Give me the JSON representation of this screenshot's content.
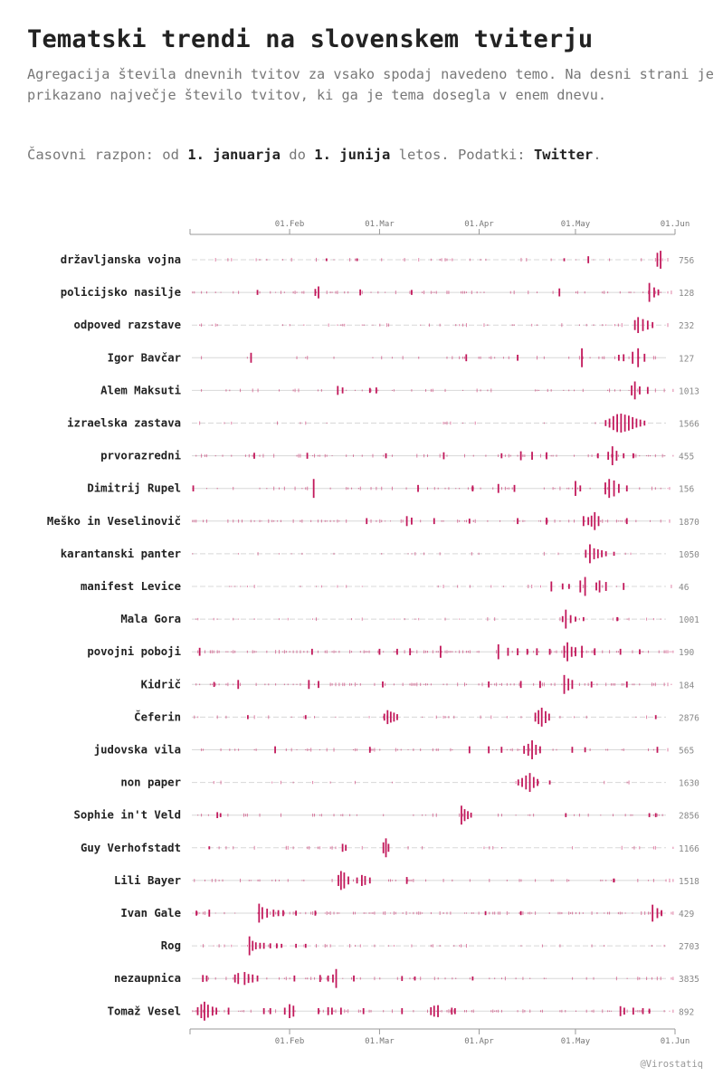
{
  "header": {
    "title": "Tematski trendi na slovenskem tviterju",
    "subtitle": "Agregacija števila dnevnih tvitov za vsako spodaj navedeno temo. Na desni strani je prikazano največje število tvitov, ki ga je tema dosegla v enem dnevu.",
    "range_prefix": "Časovni razpon: od ",
    "range_start": "1. januarja",
    "range_mid": " do ",
    "range_end": "1. junija",
    "range_suffix": " letos. Podatki: ",
    "range_source": "Twitter",
    "range_end_punct": "."
  },
  "credit": "@Virostatiq",
  "chart_data": {
    "type": "horizon-spike",
    "xlim": [
      "01.Jan",
      "01.Jun"
    ],
    "ticks": [
      {
        "label": "01.Feb",
        "day": 31
      },
      {
        "label": "01.Mar",
        "day": 59
      },
      {
        "label": "01.Apr",
        "day": 90
      },
      {
        "label": "01.May",
        "day": 120
      },
      {
        "label": "01.Jun",
        "day": 151
      }
    ],
    "colors": {
      "spike": "#c2185b",
      "baseline": "#d8d8d8",
      "axis": "#999999"
    },
    "series": [
      {
        "name": "državljanska vojna",
        "max": 756,
        "peaks": [
          [
            146.5,
            0.9
          ],
          [
            145.5,
            0.7
          ],
          [
            124,
            0.35
          ],
          [
            116.5,
            0.15
          ],
          [
            42.5,
            0.12
          ],
          [
            52,
            0.1
          ]
        ],
        "noise": 0.2
      },
      {
        "name": "policijsko nasilje",
        "max": 128,
        "peaks": [
          [
            143,
            0.95
          ],
          [
            144.5,
            0.5
          ],
          [
            40,
            0.6
          ],
          [
            39,
            0.35
          ],
          [
            115,
            0.4
          ],
          [
            21,
            0.25
          ],
          [
            53,
            0.3
          ],
          [
            69,
            0.25
          ],
          [
            145.8,
            0.3
          ]
        ],
        "noise": 0.45
      },
      {
        "name": "odpoved razstave",
        "max": 232,
        "peaks": [
          [
            139.5,
            0.8
          ],
          [
            141,
            0.6
          ],
          [
            142.5,
            0.45
          ],
          [
            138.5,
            0.5
          ],
          [
            144,
            0.3
          ]
        ],
        "noise": 0.25
      },
      {
        "name": "Igor Bavčar",
        "max": 127,
        "peaks": [
          [
            122,
            0.95
          ],
          [
            139.5,
            0.95
          ],
          [
            137.8,
            0.6
          ],
          [
            141.5,
            0.4
          ],
          [
            19,
            0.5
          ],
          [
            86,
            0.35
          ],
          [
            102,
            0.3
          ],
          [
            133.5,
            0.3
          ],
          [
            135,
            0.35
          ]
        ],
        "noise": 0.35
      },
      {
        "name": "Alem Maksuti",
        "max": 1013,
        "peaks": [
          [
            138.5,
            0.9
          ],
          [
            137.5,
            0.5
          ],
          [
            140,
            0.4
          ],
          [
            142.5,
            0.35
          ],
          [
            46,
            0.45
          ],
          [
            47.5,
            0.3
          ],
          [
            58,
            0.3
          ],
          [
            56,
            0.25
          ]
        ],
        "noise": 0.3
      },
      {
        "name": "izraelska zastava",
        "max": 1566,
        "peaks": [
          [
            133,
            0.9
          ],
          [
            134.2,
            0.95
          ],
          [
            135.4,
            0.85
          ],
          [
            136.6,
            0.75
          ],
          [
            131.8,
            0.7
          ],
          [
            137.8,
            0.6
          ],
          [
            130.6,
            0.45
          ],
          [
            139,
            0.45
          ],
          [
            140.2,
            0.35
          ],
          [
            129.4,
            0.3
          ],
          [
            141.5,
            0.25
          ]
        ],
        "noise": 0.1
      },
      {
        "name": "prvorazredni",
        "max": 455,
        "peaks": [
          [
            131.5,
            0.95
          ],
          [
            132.8,
            0.5
          ],
          [
            130.2,
            0.4
          ],
          [
            103,
            0.45
          ],
          [
            106.5,
            0.4
          ],
          [
            111,
            0.35
          ],
          [
            79,
            0.35
          ],
          [
            20,
            0.3
          ],
          [
            36.5,
            0.3
          ],
          [
            61,
            0.25
          ],
          [
            127,
            0.25
          ],
          [
            135,
            0.25
          ],
          [
            138,
            0.25
          ],
          [
            97,
            0.25
          ]
        ],
        "noise": 0.55
      },
      {
        "name": "Dimitrij Rupel",
        "max": 156,
        "peaks": [
          [
            130.5,
            0.95
          ],
          [
            132,
            0.8
          ],
          [
            129.3,
            0.6
          ],
          [
            133.5,
            0.45
          ],
          [
            120,
            0.75
          ],
          [
            121.5,
            0.3
          ],
          [
            38.5,
            0.95
          ],
          [
            1,
            0.3
          ],
          [
            96,
            0.45
          ],
          [
            101,
            0.35
          ],
          [
            71,
            0.35
          ],
          [
            88,
            0.3
          ],
          [
            136,
            0.3
          ]
        ],
        "noise": 0.4
      },
      {
        "name": "Meško in Veselinovič",
        "max": 1870,
        "peaks": [
          [
            126,
            0.9
          ],
          [
            125,
            0.55
          ],
          [
            127.2,
            0.5
          ],
          [
            122.5,
            0.5
          ],
          [
            124,
            0.4
          ],
          [
            67.5,
            0.5
          ],
          [
            69,
            0.35
          ],
          [
            55,
            0.3
          ],
          [
            76,
            0.3
          ],
          [
            87,
            0.25
          ],
          [
            102,
            0.3
          ],
          [
            111,
            0.35
          ],
          [
            136,
            0.3
          ]
        ],
        "noise": 0.5
      },
      {
        "name": "karantanski panter",
        "max": 1050,
        "peaks": [
          [
            124.5,
            0.95
          ],
          [
            125.8,
            0.55
          ],
          [
            127,
            0.45
          ],
          [
            123.2,
            0.4
          ],
          [
            128.2,
            0.35
          ],
          [
            129.5,
            0.25
          ],
          [
            132,
            0.2
          ]
        ],
        "noise": 0.1
      },
      {
        "name": "manifest Levice",
        "max": 46,
        "peaks": [
          [
            123,
            0.95
          ],
          [
            121.5,
            0.6
          ],
          [
            112.5,
            0.5
          ],
          [
            127.5,
            0.6
          ],
          [
            126.5,
            0.4
          ],
          [
            129.5,
            0.45
          ],
          [
            135,
            0.35
          ],
          [
            116,
            0.3
          ],
          [
            118,
            0.25
          ]
        ],
        "noise": 0.15
      },
      {
        "name": "Mala Gora",
        "max": 1001,
        "peaks": [
          [
            117,
            0.95
          ],
          [
            118.5,
            0.4
          ],
          [
            116,
            0.3
          ],
          [
            120,
            0.25
          ],
          [
            122.5,
            0.2
          ],
          [
            133,
            0.2
          ]
        ],
        "noise": 0.2
      },
      {
        "name": "povojni poboji",
        "max": 190,
        "peaks": [
          [
            117.5,
            0.95
          ],
          [
            116.5,
            0.6
          ],
          [
            118.8,
            0.5
          ],
          [
            120,
            0.45
          ],
          [
            122,
            0.6
          ],
          [
            96,
            0.75
          ],
          [
            78,
            0.6
          ],
          [
            3,
            0.4
          ],
          [
            38,
            0.3
          ],
          [
            59,
            0.3
          ],
          [
            64.5,
            0.3
          ],
          [
            68.5,
            0.35
          ],
          [
            99,
            0.4
          ],
          [
            102,
            0.35
          ],
          [
            105,
            0.3
          ],
          [
            108,
            0.35
          ],
          [
            112,
            0.3
          ],
          [
            126,
            0.35
          ],
          [
            134,
            0.3
          ],
          [
            140,
            0.25
          ]
        ],
        "noise": 0.65
      },
      {
        "name": "Kidrič",
        "max": 184,
        "peaks": [
          [
            116.5,
            0.95
          ],
          [
            117.8,
            0.6
          ],
          [
            119,
            0.45
          ],
          [
            15,
            0.45
          ],
          [
            37,
            0.45
          ],
          [
            40,
            0.35
          ],
          [
            60,
            0.3
          ],
          [
            93,
            0.3
          ],
          [
            103,
            0.35
          ],
          [
            109,
            0.35
          ],
          [
            125,
            0.3
          ],
          [
            136,
            0.3
          ],
          [
            7.5,
            0.25
          ]
        ],
        "noise": 0.6
      },
      {
        "name": "Čeferin",
        "max": 2876,
        "peaks": [
          [
            109.5,
            0.95
          ],
          [
            108.5,
            0.7
          ],
          [
            110.7,
            0.6
          ],
          [
            107.5,
            0.45
          ],
          [
            111.8,
            0.35
          ],
          [
            61.5,
            0.7
          ],
          [
            62.5,
            0.55
          ],
          [
            63.5,
            0.45
          ],
          [
            60.5,
            0.35
          ],
          [
            64.5,
            0.3
          ],
          [
            18,
            0.2
          ],
          [
            36,
            0.2
          ],
          [
            145,
            0.2
          ]
        ],
        "noise": 0.2
      },
      {
        "name": "judovska vila",
        "max": 565,
        "peaks": [
          [
            106.5,
            0.95
          ],
          [
            105.3,
            0.6
          ],
          [
            107.7,
            0.5
          ],
          [
            104,
            0.4
          ],
          [
            109,
            0.35
          ],
          [
            26.5,
            0.35
          ],
          [
            56,
            0.3
          ],
          [
            87,
            0.35
          ],
          [
            93,
            0.35
          ],
          [
            97,
            0.3
          ],
          [
            145.5,
            0.3
          ],
          [
            119,
            0.3
          ],
          [
            123,
            0.25
          ]
        ],
        "noise": 0.35
      },
      {
        "name": "non paper",
        "max": 1630,
        "peaks": [
          [
            105.8,
            0.95
          ],
          [
            104.6,
            0.7
          ],
          [
            107,
            0.55
          ],
          [
            103.4,
            0.45
          ],
          [
            108.2,
            0.35
          ],
          [
            102.2,
            0.3
          ],
          [
            112,
            0.2
          ]
        ],
        "noise": 0.1
      },
      {
        "name": "Sophie in't Veld",
        "max": 2856,
        "peaks": [
          [
            84.5,
            0.95
          ],
          [
            85.5,
            0.6
          ],
          [
            86.5,
            0.4
          ],
          [
            87.5,
            0.25
          ],
          [
            8.5,
            0.3
          ],
          [
            9.5,
            0.2
          ],
          [
            117,
            0.2
          ],
          [
            143,
            0.2
          ],
          [
            145,
            0.2
          ]
        ],
        "noise": 0.3
      },
      {
        "name": "Guy Verhofstadt",
        "max": 1166,
        "peaks": [
          [
            61,
            0.95
          ],
          [
            60.2,
            0.55
          ],
          [
            61.8,
            0.4
          ],
          [
            47.5,
            0.4
          ],
          [
            48.5,
            0.3
          ],
          [
            6,
            0.15
          ]
        ],
        "noise": 0.2
      },
      {
        "name": "Lili Bayer",
        "max": 1518,
        "peaks": [
          [
            47,
            0.95
          ],
          [
            48,
            0.8
          ],
          [
            46.2,
            0.55
          ],
          [
            49.3,
            0.4
          ],
          [
            53.5,
            0.55
          ],
          [
            54.5,
            0.45
          ],
          [
            52,
            0.3
          ],
          [
            56,
            0.3
          ],
          [
            67.5,
            0.35
          ],
          [
            132,
            0.2
          ]
        ],
        "noise": 0.4
      },
      {
        "name": "Ivan Gale",
        "max": 429,
        "peaks": [
          [
            21.5,
            0.95
          ],
          [
            22.5,
            0.6
          ],
          [
            24,
            0.45
          ],
          [
            26,
            0.35
          ],
          [
            27.5,
            0.3
          ],
          [
            29,
            0.3
          ],
          [
            33,
            0.25
          ],
          [
            39,
            0.25
          ],
          [
            6,
            0.35
          ],
          [
            2,
            0.25
          ],
          [
            92,
            0.2
          ],
          [
            103,
            0.2
          ],
          [
            144,
            0.85
          ],
          [
            145.5,
            0.5
          ],
          [
            146.8,
            0.3
          ]
        ],
        "noise": 0.7
      },
      {
        "name": "Rog",
        "max": 2703,
        "peaks": [
          [
            18.5,
            0.95
          ],
          [
            19.5,
            0.5
          ],
          [
            20.5,
            0.35
          ],
          [
            21.8,
            0.3
          ],
          [
            23,
            0.3
          ],
          [
            25,
            0.25
          ],
          [
            27,
            0.25
          ],
          [
            28.5,
            0.2
          ],
          [
            33,
            0.2
          ],
          [
            36,
            0.2
          ]
        ],
        "noise": 0.2
      },
      {
        "name": "nezaupnica",
        "max": 3835,
        "peaks": [
          [
            45.5,
            0.95
          ],
          [
            44.5,
            0.4
          ],
          [
            17,
            0.65
          ],
          [
            15,
            0.55
          ],
          [
            14,
            0.4
          ],
          [
            18.2,
            0.45
          ],
          [
            19.5,
            0.4
          ],
          [
            21,
            0.3
          ],
          [
            4,
            0.35
          ],
          [
            5.2,
            0.3
          ],
          [
            32.5,
            0.3
          ],
          [
            40.5,
            0.35
          ],
          [
            43,
            0.3
          ],
          [
            51,
            0.3
          ],
          [
            66,
            0.25
          ],
          [
            70,
            0.2
          ],
          [
            88,
            0.2
          ]
        ],
        "noise": 0.45
      },
      {
        "name": "Tomaž Vesel",
        "max": 892,
        "peaks": [
          [
            4.5,
            0.95
          ],
          [
            3.5,
            0.7
          ],
          [
            5.6,
            0.65
          ],
          [
            2.4,
            0.4
          ],
          [
            7,
            0.45
          ],
          [
            8.2,
            0.35
          ],
          [
            12,
            0.35
          ],
          [
            31,
            0.7
          ],
          [
            32.2,
            0.55
          ],
          [
            29.5,
            0.35
          ],
          [
            23,
            0.3
          ],
          [
            25,
            0.3
          ],
          [
            40,
            0.3
          ],
          [
            43,
            0.4
          ],
          [
            44.2,
            0.35
          ],
          [
            47,
            0.35
          ],
          [
            54,
            0.3
          ],
          [
            66,
            0.3
          ],
          [
            76,
            0.55
          ],
          [
            77.2,
            0.6
          ],
          [
            75,
            0.4
          ],
          [
            81.5,
            0.35
          ],
          [
            82.5,
            0.3
          ],
          [
            134,
            0.5
          ],
          [
            135.2,
            0.35
          ],
          [
            138,
            0.35
          ],
          [
            141,
            0.3
          ],
          [
            143,
            0.25
          ]
        ],
        "noise": 0.5
      }
    ]
  }
}
